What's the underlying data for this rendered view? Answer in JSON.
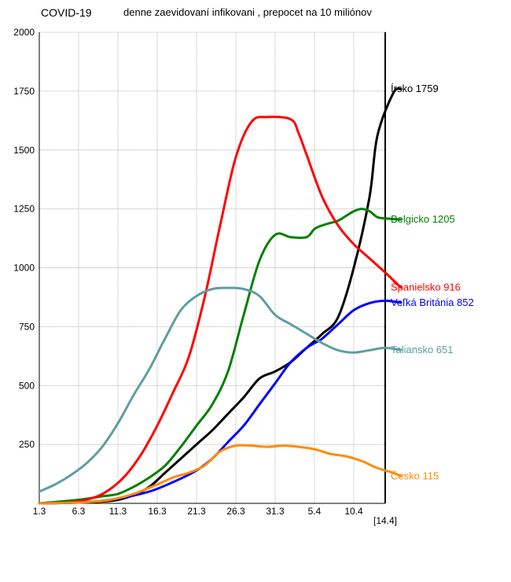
{
  "header": {
    "title": "COVID-19",
    "subtitle": "denne zaevidovaní infikovani , prepocet na 10 miliónov"
  },
  "chart_data": {
    "type": "line",
    "title": "COVID-19",
    "subtitle": "denne zaevidovaní infikovani , prepocet na 10 miliónov",
    "xlabel": "",
    "ylabel": "",
    "x_tick_labels": [
      "1.3",
      "6.3",
      "11.3",
      "16.3",
      "21.3",
      "26.3",
      "31.3",
      "5.4",
      "10.4"
    ],
    "x_end_label": "[14.4]",
    "x_range_days": [
      0,
      44
    ],
    "ylim": [
      0,
      2000
    ],
    "y_ticks": [
      250,
      500,
      750,
      1000,
      1250,
      1500,
      1750,
      2000
    ],
    "grid": true,
    "legend": "end-of-line labels",
    "series": [
      {
        "name": "Írsko",
        "end_label": "Írsko 1759",
        "color": "#000000",
        "points": [
          [
            0,
            0
          ],
          [
            4,
            3
          ],
          [
            8,
            8
          ],
          [
            10,
            15
          ],
          [
            12,
            35
          ],
          [
            14,
            70
          ],
          [
            16,
            130
          ],
          [
            18,
            190
          ],
          [
            20,
            250
          ],
          [
            22,
            310
          ],
          [
            24,
            380
          ],
          [
            26,
            450
          ],
          [
            28,
            530
          ],
          [
            30,
            560
          ],
          [
            32,
            600
          ],
          [
            34,
            660
          ],
          [
            36,
            720
          ],
          [
            38,
            790
          ],
          [
            40,
            1000
          ],
          [
            42,
            1300
          ],
          [
            43,
            1560
          ],
          [
            45,
            1740
          ],
          [
            46,
            1759
          ]
        ]
      },
      {
        "name": "Belgicko",
        "end_label": "Belgicko 1205",
        "color": "#008000",
        "points": [
          [
            0,
            0
          ],
          [
            5,
            15
          ],
          [
            8,
            30
          ],
          [
            10,
            40
          ],
          [
            12,
            70
          ],
          [
            14,
            110
          ],
          [
            16,
            160
          ],
          [
            18,
            240
          ],
          [
            20,
            330
          ],
          [
            22,
            420
          ],
          [
            24,
            560
          ],
          [
            26,
            800
          ],
          [
            28,
            1030
          ],
          [
            30,
            1140
          ],
          [
            32,
            1130
          ],
          [
            34,
            1130
          ],
          [
            35,
            1165
          ],
          [
            36,
            1180
          ],
          [
            37,
            1190
          ],
          [
            38,
            1200
          ],
          [
            39,
            1220
          ],
          [
            40,
            1240
          ],
          [
            41,
            1250
          ],
          [
            42,
            1240
          ],
          [
            43,
            1215
          ],
          [
            44,
            1210
          ],
          [
            46,
            1205
          ]
        ]
      },
      {
        "name": "Španielsko",
        "end_label": "Španielsko 916",
        "color": "#ff0000",
        "points": [
          [
            0,
            0
          ],
          [
            4,
            5
          ],
          [
            7,
            25
          ],
          [
            9,
            60
          ],
          [
            11,
            120
          ],
          [
            13,
            210
          ],
          [
            15,
            330
          ],
          [
            17,
            470
          ],
          [
            19,
            620
          ],
          [
            21,
            870
          ],
          [
            23,
            1180
          ],
          [
            25,
            1470
          ],
          [
            27,
            1620
          ],
          [
            29,
            1640
          ],
          [
            32,
            1630
          ],
          [
            33,
            1570
          ],
          [
            34,
            1480
          ],
          [
            36,
            1300
          ],
          [
            38,
            1180
          ],
          [
            40,
            1100
          ],
          [
            42,
            1040
          ],
          [
            44,
            980
          ],
          [
            46,
            916
          ]
        ]
      },
      {
        "name": "Veľká Británia",
        "end_label": "Veľká Británia 852",
        "color": "#0000ff",
        "points": [
          [
            0,
            0
          ],
          [
            6,
            5
          ],
          [
            10,
            20
          ],
          [
            14,
            50
          ],
          [
            17,
            90
          ],
          [
            20,
            140
          ],
          [
            22,
            190
          ],
          [
            24,
            260
          ],
          [
            26,
            330
          ],
          [
            28,
            420
          ],
          [
            30,
            510
          ],
          [
            32,
            600
          ],
          [
            34,
            660
          ],
          [
            35,
            680
          ],
          [
            36,
            700
          ],
          [
            38,
            760
          ],
          [
            40,
            820
          ],
          [
            42,
            850
          ],
          [
            44,
            860
          ],
          [
            46,
            852
          ]
        ]
      },
      {
        "name": "Taliansko",
        "end_label": "Taliansko 651",
        "color": "#5f9ea0",
        "points": [
          [
            0,
            50
          ],
          [
            2,
            80
          ],
          [
            4,
            120
          ],
          [
            6,
            170
          ],
          [
            8,
            240
          ],
          [
            10,
            340
          ],
          [
            12,
            460
          ],
          [
            14,
            570
          ],
          [
            16,
            700
          ],
          [
            18,
            820
          ],
          [
            20,
            880
          ],
          [
            22,
            910
          ],
          [
            24,
            915
          ],
          [
            26,
            910
          ],
          [
            28,
            880
          ],
          [
            30,
            800
          ],
          [
            32,
            760
          ],
          [
            34,
            720
          ],
          [
            36,
            680
          ],
          [
            38,
            650
          ],
          [
            40,
            640
          ],
          [
            42,
            650
          ],
          [
            44,
            660
          ],
          [
            46,
            651
          ]
        ]
      },
      {
        "name": "Česko",
        "end_label": "Česko 115",
        "color": "#ff8c00",
        "points": [
          [
            0,
            0
          ],
          [
            6,
            5
          ],
          [
            9,
            15
          ],
          [
            12,
            40
          ],
          [
            15,
            80
          ],
          [
            17,
            110
          ],
          [
            19,
            130
          ],
          [
            21,
            160
          ],
          [
            23,
            220
          ],
          [
            25,
            245
          ],
          [
            27,
            245
          ],
          [
            29,
            240
          ],
          [
            31,
            245
          ],
          [
            33,
            240
          ],
          [
            35,
            230
          ],
          [
            37,
            210
          ],
          [
            39,
            200
          ],
          [
            41,
            180
          ],
          [
            43,
            150
          ],
          [
            45,
            130
          ],
          [
            46,
            115
          ]
        ]
      }
    ]
  }
}
